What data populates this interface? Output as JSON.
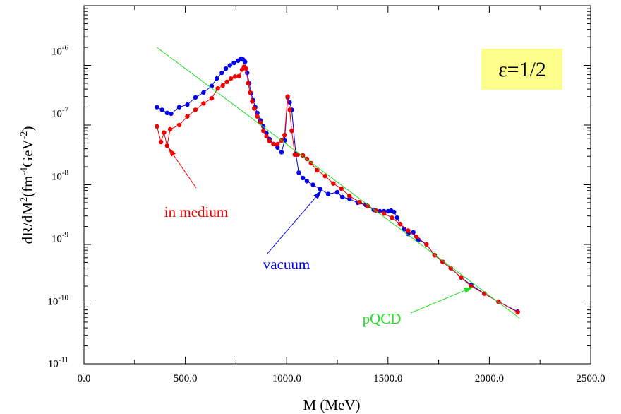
{
  "chart_data": {
    "type": "line",
    "xlabel": "M (MeV)",
    "ylabel_parts": {
      "a": "dR/dM",
      "b": "2",
      "c": "(fm",
      "d": "-4",
      "e": "GeV",
      "f": "-2",
      "g": ")"
    },
    "xlim": [
      0,
      2500
    ],
    "ylim": [
      1e-11,
      1e-05
    ],
    "y_scale": "log",
    "x_ticks": [
      {
        "value": 0,
        "label": "0.0"
      },
      {
        "value": 500,
        "label": "500.0"
      },
      {
        "value": 1000,
        "label": "1000.0"
      },
      {
        "value": 1500,
        "label": "1500.0"
      },
      {
        "value": 2000,
        "label": "2000.0"
      },
      {
        "value": 2500,
        "label": "2500.0"
      }
    ],
    "y_ticks": [
      {
        "value": 1e-11,
        "base": "10",
        "exp": "-11"
      },
      {
        "value": 1e-10,
        "base": "10",
        "exp": "-10"
      },
      {
        "value": 1e-09,
        "base": "10",
        "exp": "-9"
      },
      {
        "value": 1e-08,
        "base": "10",
        "exp": "-8"
      },
      {
        "value": 1e-07,
        "base": "10",
        "exp": "-7"
      },
      {
        "value": 1e-06,
        "base": "10",
        "exp": "-6"
      }
    ],
    "label_box": {
      "text": "ε=1/2",
      "color": "#fdfd8c"
    },
    "series": [
      {
        "key": "vacuum",
        "color": "#0000ee",
        "markers": true,
        "x": [
          360,
          385,
          410,
          430,
          470,
          510,
          550,
          590,
          630,
          655,
          680,
          700,
          720,
          740,
          760,
          775,
          785,
          795,
          805,
          815,
          825,
          835,
          845,
          855,
          870,
          885,
          900,
          915,
          935,
          955,
          975,
          990,
          1005,
          1015,
          1025,
          1045,
          1060,
          1080,
          1100,
          1130,
          1165,
          1205,
          1250,
          1275,
          1310,
          1350,
          1390,
          1430,
          1460,
          1480,
          1500,
          1515,
          1530,
          1545,
          1560,
          1580,
          1600,
          1625,
          1650,
          1690,
          1730,
          1770,
          1810,
          1860,
          1910,
          1975,
          2045,
          2140
        ],
        "y": [
          2e-07,
          1.8e-07,
          1.6e-07,
          1.55e-07,
          2e-07,
          2.2e-07,
          2.9e-07,
          3.5e-07,
          4.5e-07,
          6e-07,
          7.5e-07,
          8.8e-07,
          1e-06,
          1.1e-06,
          1.2e-06,
          1.3e-06,
          1.25e-06,
          1.15e-06,
          7.5e-07,
          5e-07,
          3.4e-07,
          2.6e-07,
          2e-07,
          1.6e-07,
          1.2e-07,
          9.5e-08,
          7.3e-08,
          5.8e-08,
          4.8e-08,
          4.2e-08,
          3.5e-08,
          5.5e-08,
          2.9e-07,
          2.4e-07,
          1.8e-07,
          3.3e-08,
          1.6e-08,
          1.3e-08,
          1.15e-08,
          1e-08,
          8.5e-09,
          7e-09,
          7.5e-09,
          6.2e-09,
          5.8e-09,
          5e-09,
          4.6e-09,
          3.8e-09,
          3.6e-09,
          3.6e-09,
          3.6e-09,
          3.7e-09,
          3.5e-09,
          2.8e-09,
          2.2e-09,
          1.8e-09,
          1.5e-09,
          1.6e-09,
          1.2e-09,
          1e-09,
          6.6e-10,
          5.1e-10,
          4e-10,
          2.8e-10,
          2.1e-10,
          1.5e-10,
          1.1e-10,
          7.5e-11
        ]
      },
      {
        "key": "in-medium",
        "color": "#ee0000",
        "markers": true,
        "x": [
          360,
          380,
          395,
          410,
          425,
          470,
          510,
          550,
          590,
          630,
          660,
          685,
          705,
          725,
          745,
          765,
          780,
          790,
          800,
          810,
          820,
          830,
          840,
          855,
          870,
          885,
          900,
          915,
          935,
          955,
          975,
          990,
          1005,
          1015,
          1025,
          1040,
          1055,
          1080,
          1100,
          1120,
          1150,
          1190,
          1230,
          1270,
          1310,
          1360,
          1400,
          1440,
          1480,
          1520,
          1560,
          1600,
          1640,
          1690,
          1730,
          1770,
          1810,
          1860,
          1910,
          1975,
          2045,
          2140
        ],
        "y": [
          9.5e-08,
          5.2e-08,
          7.5e-08,
          4.5e-08,
          8.5e-08,
          1e-07,
          1.4e-07,
          1.8e-07,
          2.3e-07,
          2.8e-07,
          4.1e-07,
          4.6e-07,
          5.3e-07,
          6e-07,
          6.5e-07,
          6.6e-07,
          8.5e-07,
          9.5e-07,
          8.8e-07,
          5e-07,
          3.5e-07,
          2.5e-07,
          1.9e-07,
          1.4e-07,
          1.1e-07,
          8e-08,
          6.5e-08,
          5.4e-08,
          4.8e-08,
          4.8e-08,
          5.5e-08,
          6.8e-08,
          3e-07,
          1.8e-07,
          8e-08,
          3.2e-08,
          3.2e-08,
          3.1e-08,
          2.7e-08,
          2.3e-08,
          1.75e-08,
          1.4e-08,
          1.05e-08,
          8.6e-09,
          6.5e-09,
          5.1e-09,
          4.4e-09,
          3.7e-09,
          3.3e-09,
          2.8e-09,
          2.2e-09,
          1.7e-09,
          1.35e-09,
          1e-09,
          6.6e-10,
          5.1e-10,
          4e-10,
          2.8e-10,
          2e-10,
          1.5e-10,
          1.1e-10,
          7.3e-11
        ]
      },
      {
        "key": "pqcd",
        "color": "#22dd22",
        "markers": false,
        "x": [
          360,
          2150
        ],
        "y": [
          2e-06,
          5.8e-11
        ]
      }
    ],
    "annotations": [
      {
        "key": "in-medium",
        "text": "in medium",
        "color": "#ee0000",
        "arrow_to": [
          410,
          4.5e-08
        ]
      },
      {
        "key": "vacuum",
        "text": "vacuum",
        "color": "#0000ee",
        "arrow_to": [
          1180,
          8.6e-09
        ]
      },
      {
        "key": "pqcd",
        "text": "pQCD",
        "color": "#22dd22",
        "arrow_to": [
          1930,
          2e-10
        ]
      }
    ]
  }
}
